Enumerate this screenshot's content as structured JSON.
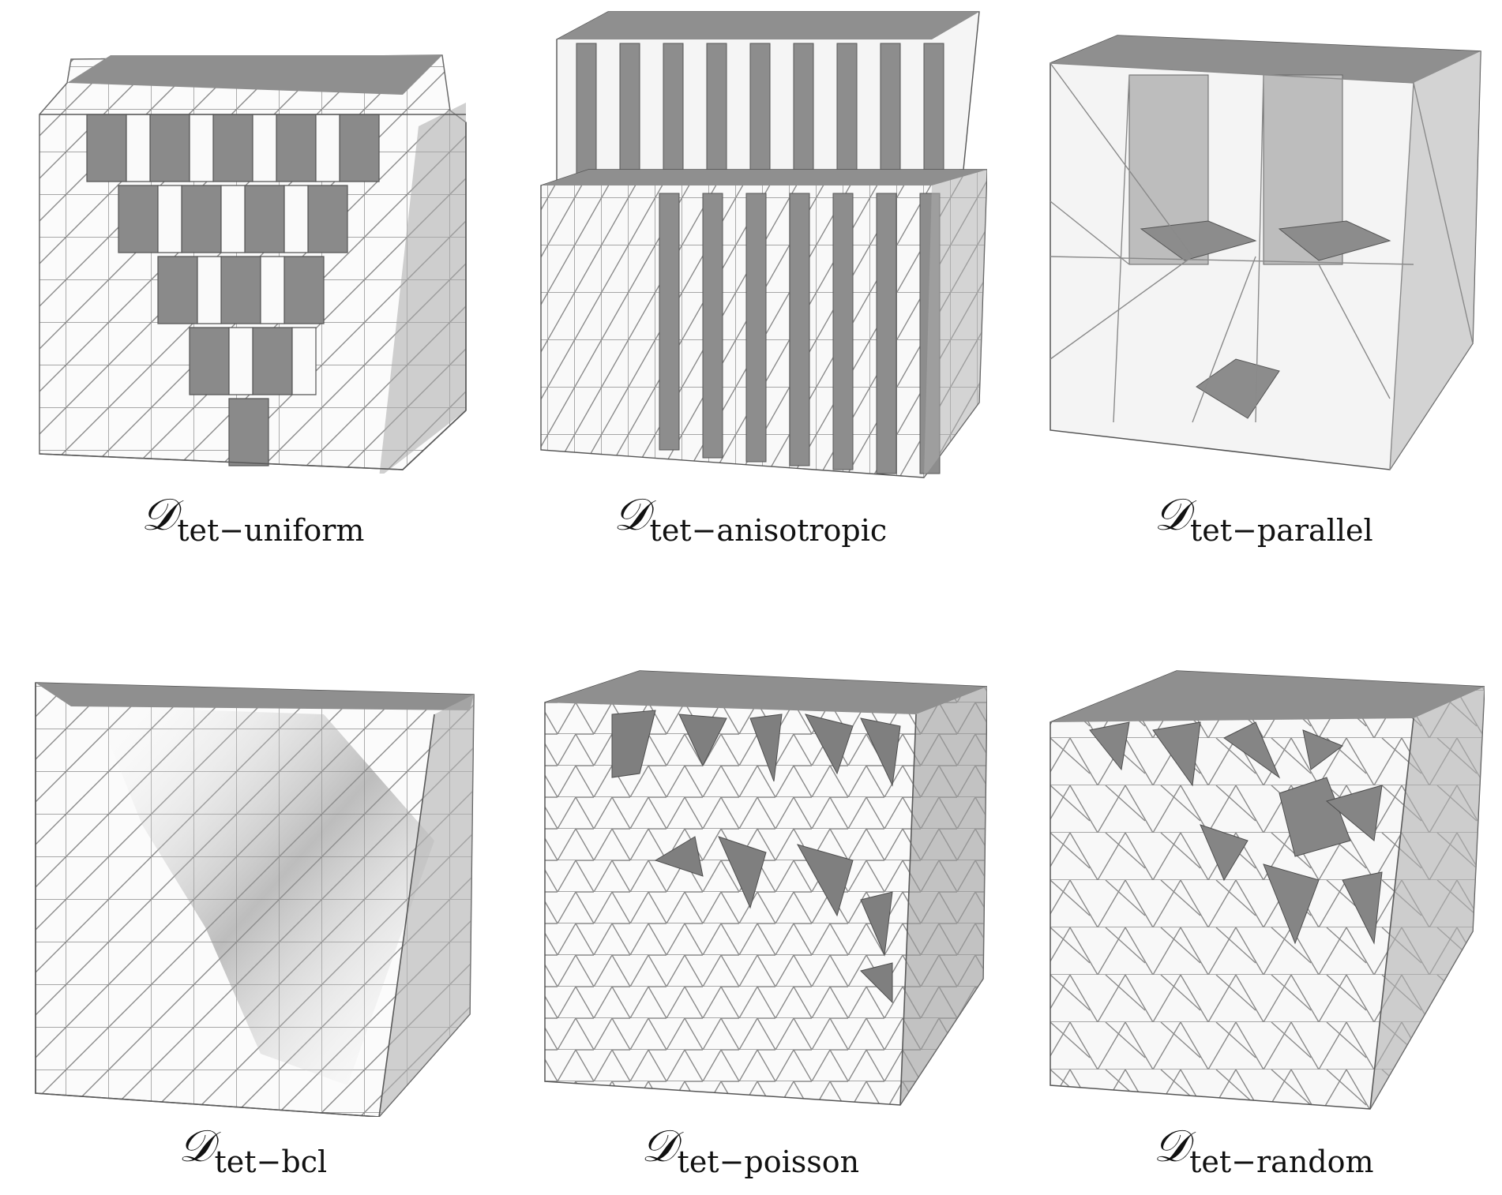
{
  "figure": {
    "panels": [
      {
        "id": "tet-uniform",
        "symbol": "𝒟",
        "subscript": "tet−uniform"
      },
      {
        "id": "tet-anisotropic",
        "symbol": "𝒟",
        "subscript": "tet−anisotropic"
      },
      {
        "id": "tet-parallel",
        "symbol": "𝒟",
        "subscript": "tet−parallel"
      },
      {
        "id": "tet-bcl",
        "symbol": "𝒟",
        "subscript": "tet−bcl"
      },
      {
        "id": "tet-poisson",
        "symbol": "𝒟",
        "subscript": "tet−poisson"
      },
      {
        "id": "tet-random",
        "symbol": "𝒟",
        "subscript": "tet−random"
      }
    ]
  },
  "colors": {
    "background": "#ffffff",
    "face_light": "#f7f7f7",
    "face_shaded": "#8c8c8c",
    "mesh_line": "#8a8a8a",
    "text": "#111111"
  }
}
